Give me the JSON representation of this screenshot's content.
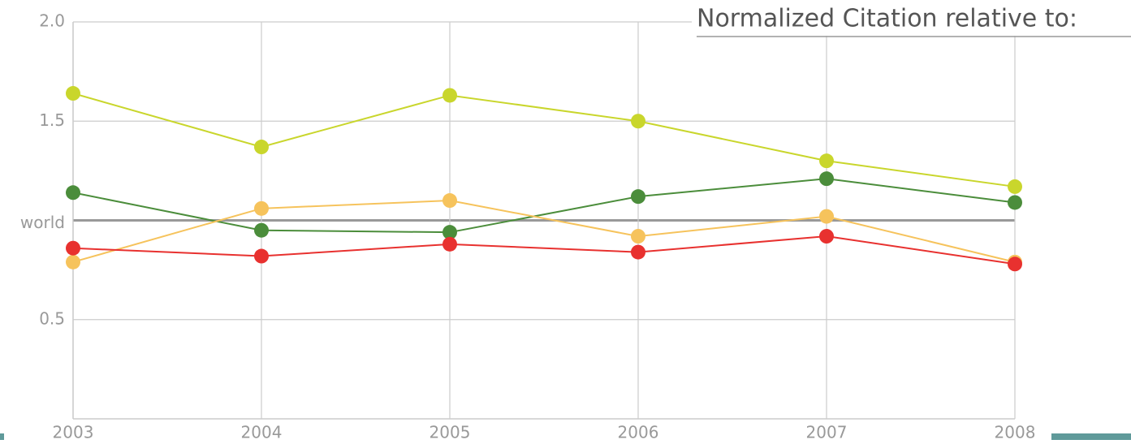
{
  "chart_data": {
    "type": "line",
    "annotation": "Normalized Citation relative to:",
    "categories": [
      "2003",
      "2004",
      "2005",
      "2006",
      "2007",
      "2008"
    ],
    "series": [
      {
        "color": "#c9d62c",
        "values": [
          1.64,
          1.37,
          1.63,
          1.5,
          1.3,
          1.17
        ]
      },
      {
        "color": "#4b8d3b",
        "values": [
          1.14,
          0.95,
          0.94,
          1.12,
          1.21,
          1.09
        ]
      },
      {
        "color": "#f6c35c",
        "values": [
          0.79,
          1.06,
          1.1,
          0.92,
          1.02,
          0.79
        ]
      },
      {
        "color": "#e8312f",
        "values": [
          0.86,
          0.82,
          0.88,
          0.84,
          0.92,
          0.78
        ]
      }
    ],
    "ylim": [
      0,
      2
    ],
    "yticks": [
      {
        "value": 0.5,
        "label": "0.5"
      },
      {
        "value": 1,
        "label": "world"
      },
      {
        "value": 1.5,
        "label": "1.5"
      },
      {
        "value": 2,
        "label": "2.0"
      }
    ],
    "grid": true
  }
}
